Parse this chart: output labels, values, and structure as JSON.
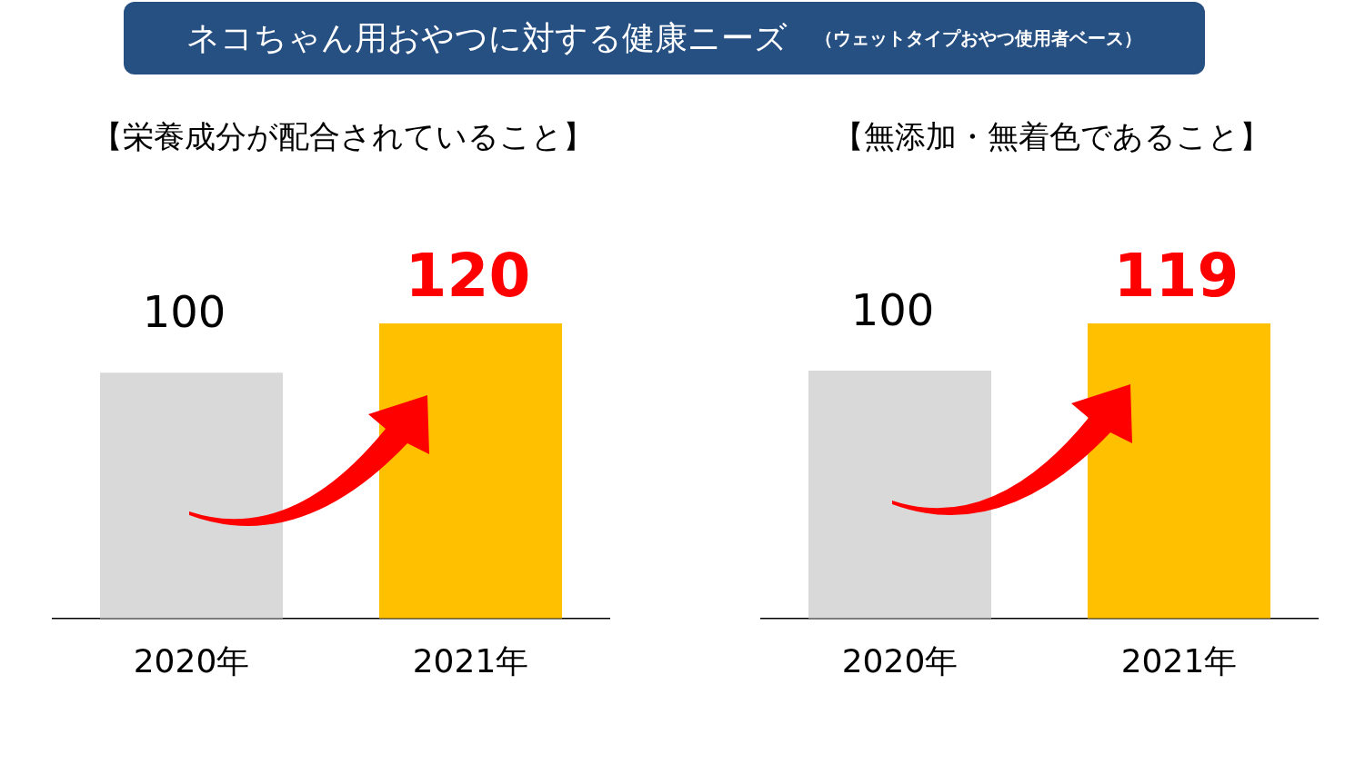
{
  "chart_data": [
    {
      "type": "other",
      "title": "ネコちゃん用おやつに対する健康ニーズ",
      "subtitle": "（ウェットタイプおやつ使用者ベース）"
    },
    {
      "type": "bar",
      "title": "【栄養成分が配合されていること】",
      "categories": [
        "2020年",
        "2021年"
      ],
      "values": [
        100,
        120
      ],
      "colors": [
        "#d9d9d9",
        "#ffc000"
      ],
      "data_labels": true,
      "grid": false,
      "legend": false
    },
    {
      "type": "bar",
      "title": "【無添加・無着色であること】",
      "categories": [
        "2020年",
        "2021年"
      ],
      "values": [
        100,
        119
      ],
      "colors": [
        "#d9d9d9",
        "#ffc000"
      ],
      "data_labels": true,
      "grid": false,
      "legend": false
    }
  ]
}
